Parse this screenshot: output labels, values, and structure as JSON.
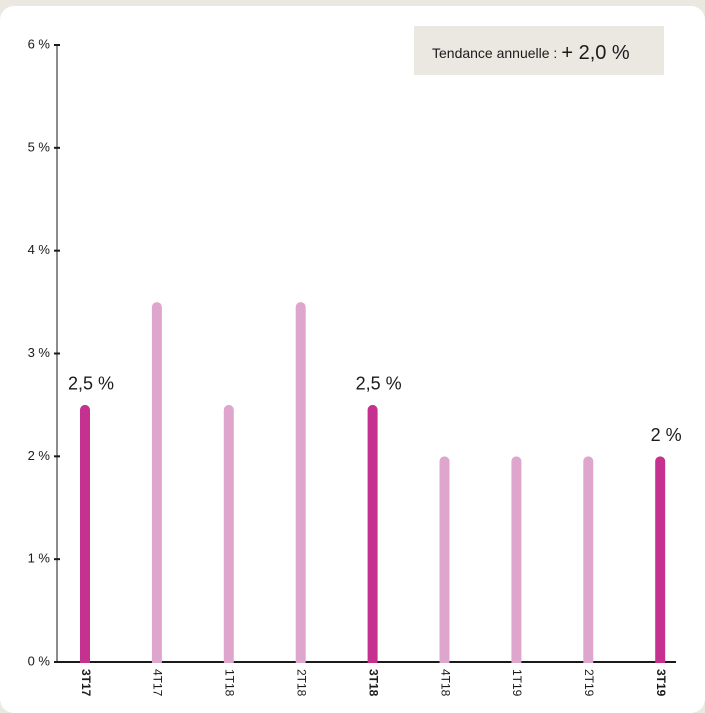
{
  "chart_data": {
    "type": "bar",
    "categories": [
      "3T17",
      "4T17",
      "1T18",
      "2T18",
      "3T18",
      "4T18",
      "1T19",
      "2T19",
      "3T19"
    ],
    "values": [
      2.5,
      3.5,
      2.5,
      3.5,
      2.5,
      2,
      2,
      2,
      2
    ],
    "value_labels": [
      "2,5 %",
      null,
      null,
      null,
      "2,5 %",
      null,
      null,
      null,
      "2 %"
    ],
    "colors": [
      "#c4318e",
      "#dfa6cd",
      "#dfa6cd",
      "#dfa6cd",
      "#c4318e",
      "#dfa6cd",
      "#dfa6cd",
      "#dfa6cd",
      "#c4318e"
    ],
    "highlight": [
      true,
      false,
      false,
      false,
      true,
      false,
      false,
      false,
      true
    ],
    "ylim": [
      0,
      6
    ],
    "yticks": [
      {
        "value": 0,
        "label": "0 %"
      },
      {
        "value": 1,
        "label": "1 %"
      },
      {
        "value": 2,
        "label": "2 %"
      },
      {
        "value": 3,
        "label": "3 %"
      },
      {
        "value": 4,
        "label": "4 %"
      },
      {
        "value": 5,
        "label": "5 %"
      },
      {
        "value": 6,
        "label": "6 %"
      }
    ],
    "annotation": {
      "label": "Tendance annuelle :",
      "value": "+ 2,0 %"
    }
  }
}
